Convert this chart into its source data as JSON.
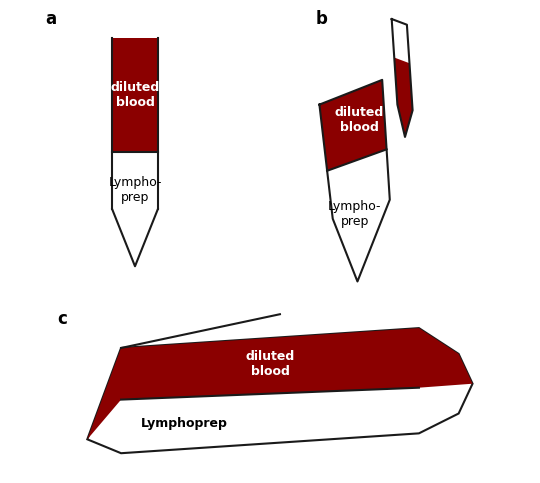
{
  "blood_color": "#8B0000",
  "outline_color": "#1a1a1a",
  "bg_color": "#ffffff",
  "text_color_white": "#ffffff",
  "text_color_black": "#000000",
  "label_a": "a",
  "label_b": "b",
  "label_c": "c",
  "blood_label": "diluted\nblood",
  "lympho_label_hyphen": "Lympho-\nprep",
  "lympho_label": "Lymphoprep",
  "line_width": 1.5
}
